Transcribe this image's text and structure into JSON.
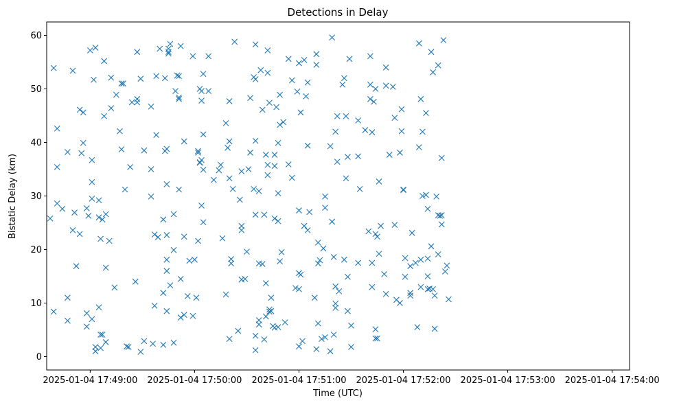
{
  "chart_data": {
    "type": "scatter",
    "title": "Detections in Delay",
    "xlabel": "Time (UTC)",
    "ylabel": "Bistatic Delay (km)",
    "x_start": "2025-01-04 17:48:52",
    "xlim_seconds": [
      -17,
      318
    ],
    "ylim": [
      -2.5,
      62.5
    ],
    "x_tick_seconds": [
      8,
      68,
      128,
      188,
      248,
      308
    ],
    "x_tick_labels": [
      "2025-01-04 17:49:00",
      "2025-01-04 17:50:00",
      "2025-01-04 17:51:00",
      "2025-01-04 17:52:00",
      "2025-01-04 17:53:00",
      "2025-01-04 17:54:00"
    ],
    "y_ticks": [
      0,
      10,
      20,
      30,
      40,
      50,
      60
    ],
    "y_tick_labels": [
      "0",
      "10",
      "20",
      "30",
      "40",
      "50",
      "60"
    ],
    "grid": false,
    "marker": "x",
    "color": "#1f77b4",
    "points_seconds_km": [
      [
        -15,
        25.8
      ],
      [
        -13,
        53.9
      ],
      [
        -13,
        8.4
      ],
      [
        -11,
        42.6
      ],
      [
        -11,
        35.4
      ],
      [
        -11,
        28.6
      ],
      [
        -8,
        27.6
      ],
      [
        -5,
        38.2
      ],
      [
        -5,
        11
      ],
      [
        -5,
        6.7
      ],
      [
        -2,
        53.4
      ],
      [
        -2,
        23.6
      ],
      [
        -1,
        26.9
      ],
      [
        0,
        16.9
      ],
      [
        2,
        46.1
      ],
      [
        2,
        22.9
      ],
      [
        3,
        38
      ],
      [
        4,
        39.9
      ],
      [
        4,
        45.6
      ],
      [
        6,
        27.7
      ],
      [
        6,
        5.6
      ],
      [
        6,
        8.1
      ],
      [
        7,
        26.3
      ],
      [
        8,
        57.2
      ],
      [
        9,
        29.5
      ],
      [
        9,
        36.7
      ],
      [
        9,
        32.6
      ],
      [
        9,
        7
      ],
      [
        10,
        51.7
      ],
      [
        11,
        57.7
      ],
      [
        11,
        1
      ],
      [
        11,
        1.8
      ],
      [
        13,
        9.2
      ],
      [
        13,
        29.2
      ],
      [
        13,
        26
      ],
      [
        14,
        22
      ],
      [
        14,
        1.6
      ],
      [
        14,
        4.1
      ],
      [
        15,
        4.1
      ],
      [
        15,
        25.6
      ],
      [
        16,
        44.9
      ],
      [
        16,
        55.2
      ],
      [
        17,
        2.7
      ],
      [
        17,
        16.6
      ],
      [
        17,
        26.6
      ],
      [
        19,
        21.6
      ],
      [
        20,
        52.1
      ],
      [
        20,
        46.4
      ],
      [
        22,
        12.9
      ],
      [
        23,
        48.9
      ],
      [
        25,
        42.1
      ],
      [
        26,
        51
      ],
      [
        26,
        38.7
      ],
      [
        27,
        51
      ],
      [
        28,
        31.2
      ],
      [
        29,
        1.9
      ],
      [
        30,
        1.8
      ],
      [
        31,
        35.4
      ],
      [
        32,
        47.5
      ],
      [
        34,
        14
      ],
      [
        35,
        47.5
      ],
      [
        35,
        48.1
      ],
      [
        35,
        56.9
      ],
      [
        37,
        51.9
      ],
      [
        37,
        0.9
      ],
      [
        39,
        2.9
      ],
      [
        39,
        38.5
      ],
      [
        43,
        46.7
      ],
      [
        43,
        35
      ],
      [
        43,
        29.9
      ],
      [
        44,
        2.4
      ],
      [
        45,
        9.5
      ],
      [
        45,
        22.8
      ],
      [
        46,
        41.4
      ],
      [
        46,
        52.4
      ],
      [
        47,
        22.3
      ],
      [
        48,
        57.5
      ],
      [
        50,
        2.2
      ],
      [
        50,
        25.6
      ],
      [
        50,
        11.9
      ],
      [
        51,
        38.4
      ],
      [
        51,
        52
      ],
      [
        52,
        18.1
      ],
      [
        52,
        16
      ],
      [
        52,
        32.2
      ],
      [
        52,
        22.7
      ],
      [
        52,
        8.5
      ],
      [
        52,
        38.8
      ],
      [
        53,
        57.5
      ],
      [
        53,
        56.9
      ],
      [
        53,
        56.6
      ],
      [
        54,
        58.4
      ],
      [
        54,
        13.3
      ],
      [
        56,
        19.9
      ],
      [
        56,
        26.6
      ],
      [
        56,
        2.6
      ],
      [
        57,
        49.6
      ],
      [
        58,
        52.5
      ],
      [
        59,
        52.4
      ],
      [
        59,
        48.4
      ],
      [
        59,
        31.2
      ],
      [
        59,
        48.1
      ],
      [
        60,
        14.5
      ],
      [
        60,
        7.3
      ],
      [
        60,
        58
      ],
      [
        62,
        40.2
      ],
      [
        62,
        7.8
      ],
      [
        62,
        22.4
      ],
      [
        64,
        11.3
      ],
      [
        65,
        17.9
      ],
      [
        67,
        56.1
      ],
      [
        67,
        7.6
      ],
      [
        68,
        18.1
      ],
      [
        69,
        11
      ],
      [
        70,
        21.6
      ],
      [
        70,
        38.1
      ],
      [
        70,
        38.4
      ],
      [
        71,
        50
      ],
      [
        71,
        36.3
      ],
      [
        71,
        36.2
      ],
      [
        72,
        49.6
      ],
      [
        72,
        28.2
      ],
      [
        72,
        47.8
      ],
      [
        72,
        36.7
      ],
      [
        73,
        41.5
      ],
      [
        73,
        34.9
      ],
      [
        73,
        25.1
      ],
      [
        73,
        52.8
      ],
      [
        76,
        49.6
      ],
      [
        76,
        56.1
      ],
      [
        79,
        33
      ],
      [
        82,
        34.8
      ],
      [
        83,
        35.8
      ],
      [
        84,
        22.1
      ],
      [
        86,
        11.6
      ],
      [
        86,
        43.6
      ],
      [
        87,
        39
      ],
      [
        88,
        47.7
      ],
      [
        88,
        40.2
      ],
      [
        88,
        33.3
      ],
      [
        88,
        3.3
      ],
      [
        89,
        18.2
      ],
      [
        89,
        17.4
      ],
      [
        90,
        31.3
      ],
      [
        91,
        58.8
      ],
      [
        93,
        4.8
      ],
      [
        94,
        29.3
      ],
      [
        95,
        23.6
      ],
      [
        95,
        24.4
      ],
      [
        95,
        14.4
      ],
      [
        95,
        34.6
      ],
      [
        97,
        14.5
      ],
      [
        98,
        19.6
      ],
      [
        99,
        35
      ],
      [
        100,
        38.1
      ],
      [
        100,
        48.3
      ],
      [
        102,
        52.2
      ],
      [
        102,
        31.3
      ],
      [
        103,
        58.3
      ],
      [
        103,
        51.8
      ],
      [
        103,
        40.3
      ],
      [
        103,
        26.5
      ],
      [
        103,
        3.9
      ],
      [
        103,
        1.2
      ],
      [
        105,
        17.4
      ],
      [
        105,
        30.9
      ],
      [
        105,
        6.8
      ],
      [
        105,
        6
      ],
      [
        106,
        53.5
      ],
      [
        107,
        46.1
      ],
      [
        107,
        17.3
      ],
      [
        108,
        26.5
      ],
      [
        108,
        3.2
      ],
      [
        109,
        37.7
      ],
      [
        109,
        13.7
      ],
      [
        109,
        7.5
      ],
      [
        110,
        35.8
      ],
      [
        110,
        33.9
      ],
      [
        110,
        53
      ],
      [
        110,
        57.2
      ],
      [
        111,
        47.4
      ],
      [
        111,
        8.4
      ],
      [
        111,
        8.8
      ],
      [
        112,
        11
      ],
      [
        112,
        8.5
      ],
      [
        113,
        5.7
      ],
      [
        114,
        37.7
      ],
      [
        114,
        25.8
      ],
      [
        114,
        35.6
      ],
      [
        114,
        5.4
      ],
      [
        115,
        46.6
      ],
      [
        116,
        5.5
      ],
      [
        116,
        39.9
      ],
      [
        116,
        30.5
      ],
      [
        116,
        25.3
      ],
      [
        117,
        17.8
      ],
      [
        117,
        48.9
      ],
      [
        117,
        43.3
      ],
      [
        118,
        19.5
      ],
      [
        119,
        43.8
      ],
      [
        120,
        6.4
      ],
      [
        122,
        35.9
      ],
      [
        122,
        55.6
      ],
      [
        124,
        51.6
      ],
      [
        124,
        33.4
      ],
      [
        126,
        12.8
      ],
      [
        127,
        49.5
      ],
      [
        128,
        54.8
      ],
      [
        128,
        27.3
      ],
      [
        128,
        1.9
      ],
      [
        128,
        12.6
      ],
      [
        128,
        15.6
      ],
      [
        129,
        15.3
      ],
      [
        129,
        45.6
      ],
      [
        130,
        2.9
      ],
      [
        131,
        55.4
      ],
      [
        131,
        24.4
      ],
      [
        132,
        48.6
      ],
      [
        133,
        51.2
      ],
      [
        133,
        39.4
      ],
      [
        133,
        23.6
      ],
      [
        134,
        27
      ],
      [
        137,
        11
      ],
      [
        138,
        56.5
      ],
      [
        138,
        54.5
      ],
      [
        138,
        1.4
      ],
      [
        139,
        17.4
      ],
      [
        139,
        21.3
      ],
      [
        139,
        6.2
      ],
      [
        140,
        18
      ],
      [
        141,
        3.3
      ],
      [
        142,
        20.2
      ],
      [
        143,
        3.6
      ],
      [
        143,
        27.8
      ],
      [
        143,
        29.9
      ],
      [
        146,
        39.3
      ],
      [
        146,
        1
      ],
      [
        147,
        25.2
      ],
      [
        147,
        59.6
      ],
      [
        148,
        4.1
      ],
      [
        148,
        18.6
      ],
      [
        149,
        9.1
      ],
      [
        149,
        13.1
      ],
      [
        149,
        9.9
      ],
      [
        149,
        42
      ],
      [
        150,
        44.9
      ],
      [
        150,
        36.4
      ],
      [
        151,
        12.2
      ],
      [
        153,
        50.8
      ],
      [
        154,
        52
      ],
      [
        154,
        18.1
      ],
      [
        155,
        33.3
      ],
      [
        155,
        44.9
      ],
      [
        156,
        37.3
      ],
      [
        156,
        8.5
      ],
      [
        156,
        14.9
      ],
      [
        157,
        55.6
      ],
      [
        158,
        5.8
      ],
      [
        158,
        1.8
      ],
      [
        162,
        44.1
      ],
      [
        162,
        37.4
      ],
      [
        162,
        17.5
      ],
      [
        163,
        31.3
      ],
      [
        166,
        42.3
      ],
      [
        168,
        23.4
      ],
      [
        169,
        56.1
      ],
      [
        169,
        50.8
      ],
      [
        169,
        48.1
      ],
      [
        170,
        41.9
      ],
      [
        170,
        17.5
      ],
      [
        170,
        13
      ],
      [
        171,
        47.6
      ],
      [
        172,
        5.1
      ],
      [
        172,
        3.4
      ],
      [
        172,
        50
      ],
      [
        172,
        22.9
      ],
      [
        173,
        22.4
      ],
      [
        173,
        3.4
      ],
      [
        174,
        32.7
      ],
      [
        174,
        19.2
      ],
      [
        175,
        24.4
      ],
      [
        177,
        15.4
      ],
      [
        178,
        54
      ],
      [
        178,
        50.6
      ],
      [
        178,
        11.7
      ],
      [
        180,
        37.7
      ],
      [
        182,
        50.4
      ],
      [
        183,
        24.6
      ],
      [
        183,
        44.6
      ],
      [
        184,
        10.6
      ],
      [
        186,
        10
      ],
      [
        186,
        38.1
      ],
      [
        187,
        46.2
      ],
      [
        187,
        42.1
      ],
      [
        188,
        31.2
      ],
      [
        188,
        31.1
      ],
      [
        189,
        14.9
      ],
      [
        189,
        18.4
      ],
      [
        192,
        16.9
      ],
      [
        192,
        11.4
      ],
      [
        192,
        11.9
      ],
      [
        193,
        23.1
      ],
      [
        195,
        17.5
      ],
      [
        196,
        5.5
      ],
      [
        197,
        58.5
      ],
      [
        197,
        39.1
      ],
      [
        198,
        48.1
      ],
      [
        198,
        18.1
      ],
      [
        198,
        13
      ],
      [
        199,
        30
      ],
      [
        199,
        42
      ],
      [
        201,
        45.5
      ],
      [
        201,
        30.2
      ],
      [
        202,
        27.6
      ],
      [
        202,
        18.3
      ],
      [
        202,
        15
      ],
      [
        202,
        12.6
      ],
      [
        203,
        12.7
      ],
      [
        204,
        20.6
      ],
      [
        204,
        56.9
      ],
      [
        205,
        53.1
      ],
      [
        205,
        12.6
      ],
      [
        206,
        11.4
      ],
      [
        206,
        5.2
      ],
      [
        207,
        29.9
      ],
      [
        208,
        54.4
      ],
      [
        208,
        26.4
      ],
      [
        208,
        19.1
      ],
      [
        209,
        26.3
      ],
      [
        210,
        26.4
      ],
      [
        210,
        24.7
      ],
      [
        210,
        37.1
      ],
      [
        211,
        59.1
      ],
      [
        212,
        15.9
      ],
      [
        213,
        17
      ],
      [
        214,
        10.7
      ]
    ]
  }
}
